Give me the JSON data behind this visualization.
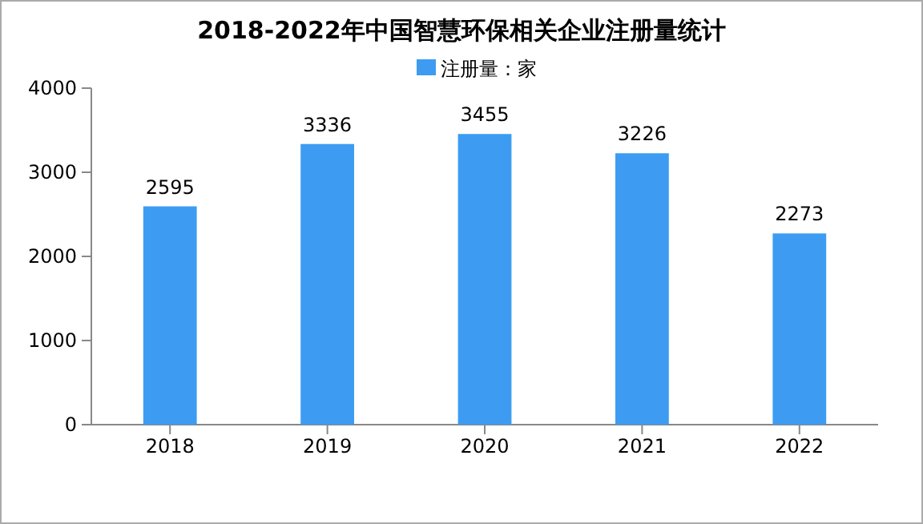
{
  "chart_data": {
    "type": "bar",
    "title": "2018-2022年中国智慧环保相关企业注册量统计",
    "categories": [
      "2018",
      "2019",
      "2020",
      "2021",
      "2022"
    ],
    "series": [
      {
        "name": "注册量：家",
        "color": "#3d9cf2",
        "values": [
          2595,
          3336,
          3455,
          3226,
          2273
        ]
      }
    ],
    "ylim": [
      0,
      4000
    ],
    "yticks": [
      0,
      1000,
      2000,
      3000,
      4000
    ],
    "grid": false,
    "legend": "top",
    "data_labels": true
  }
}
